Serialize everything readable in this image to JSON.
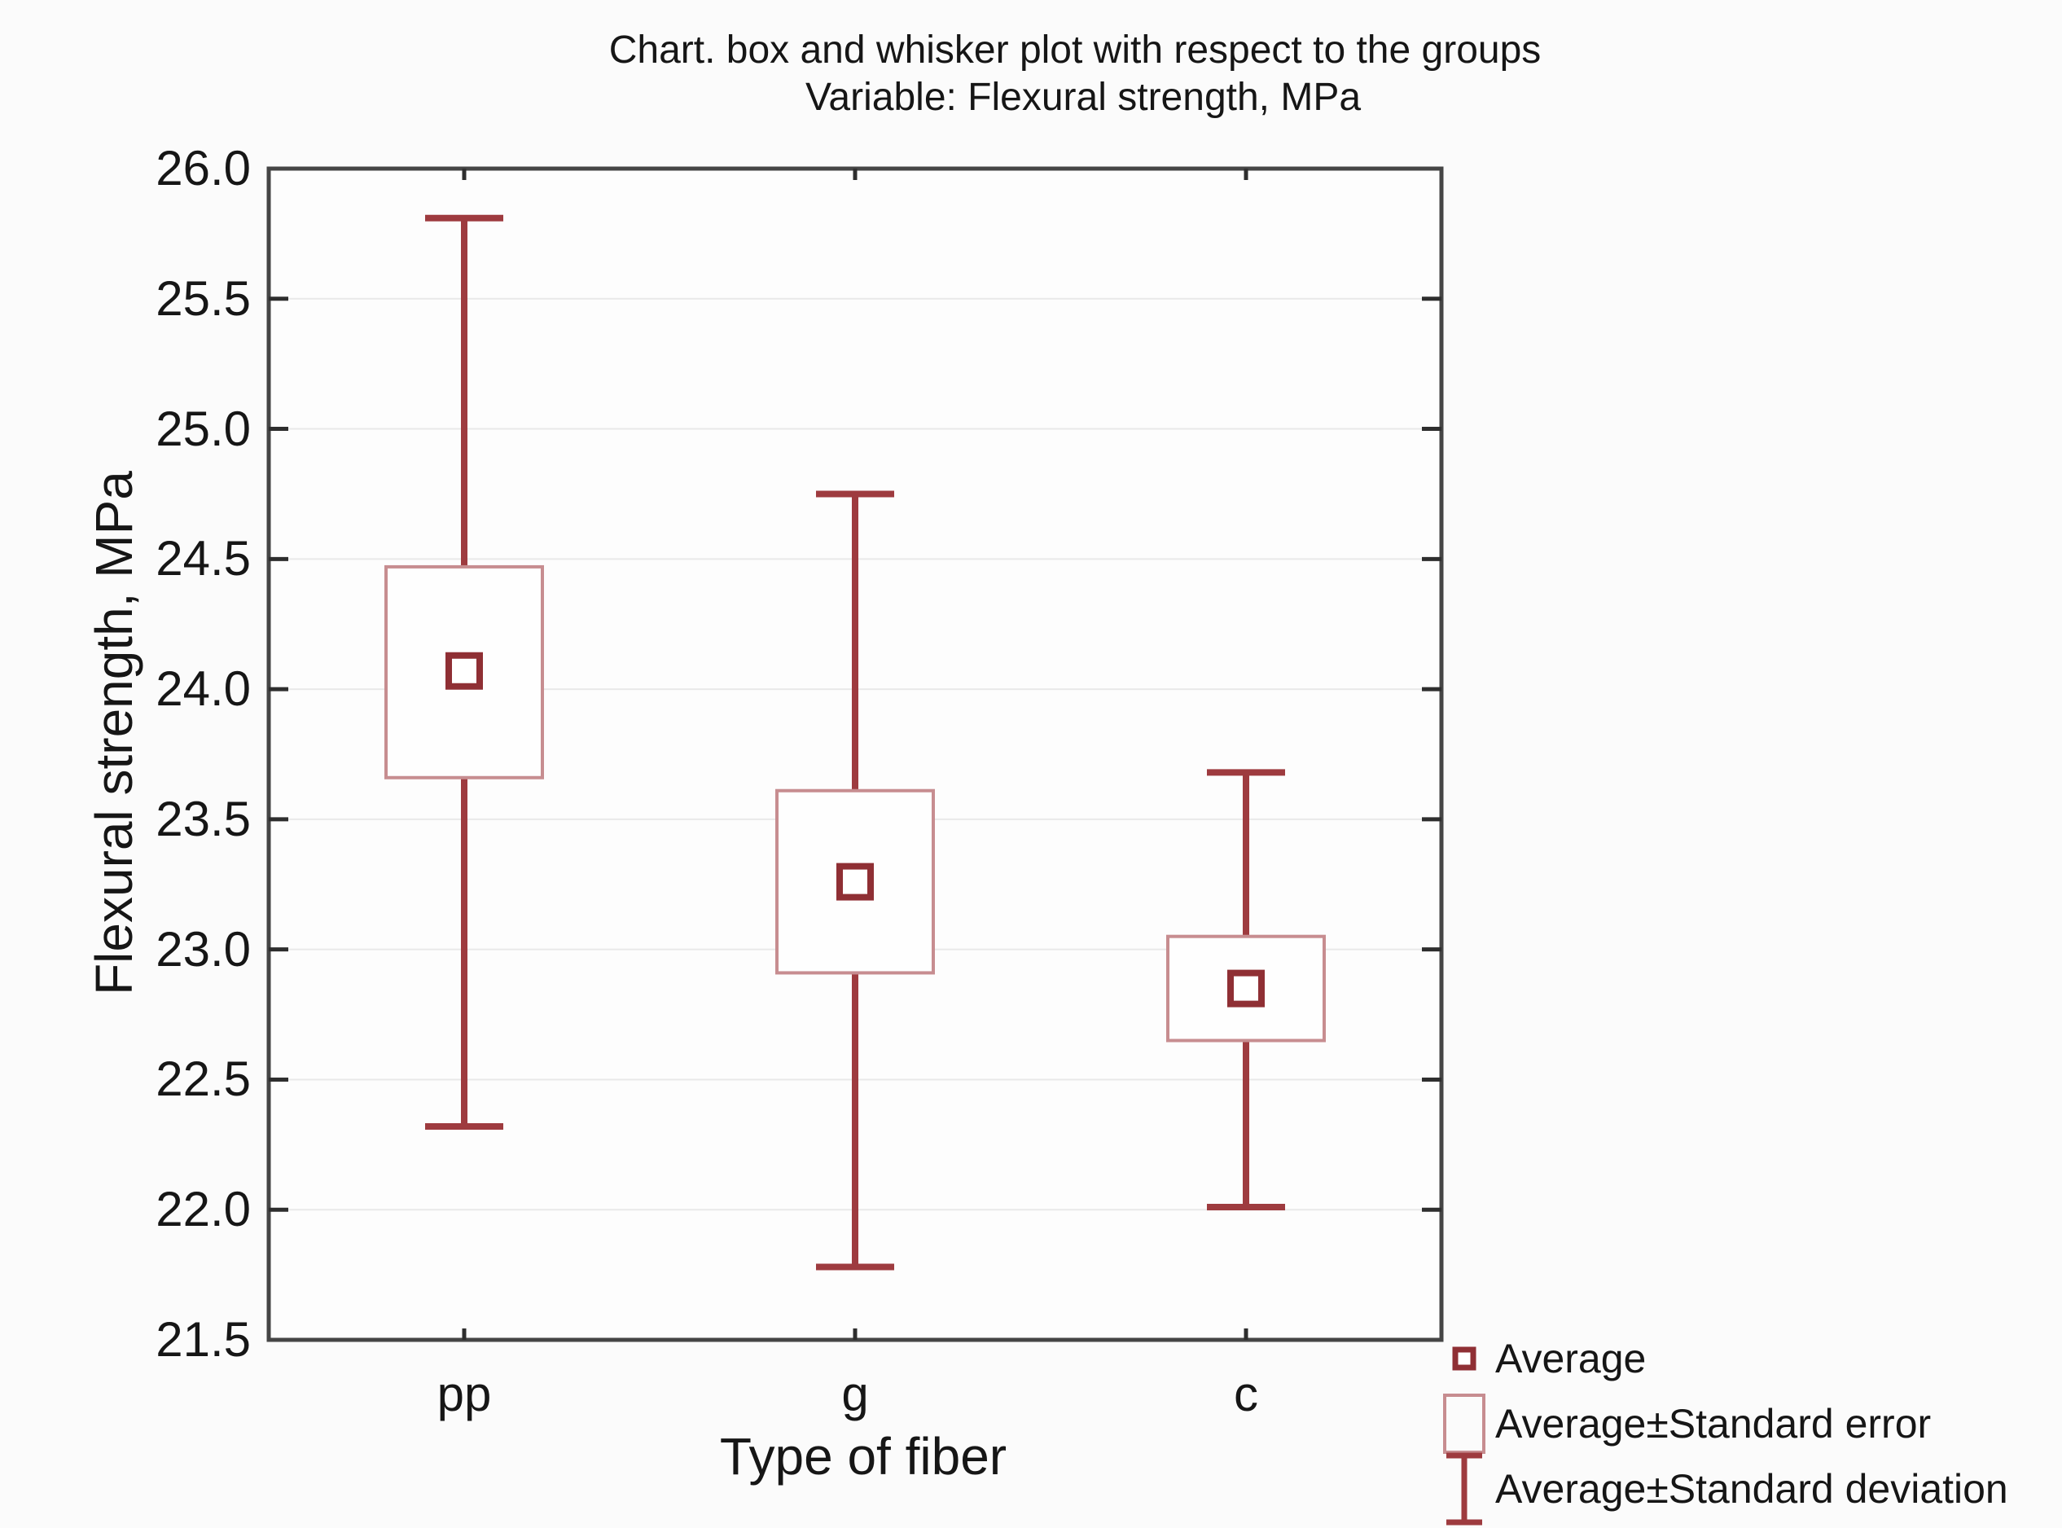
{
  "chart_data": {
    "type": "box",
    "title_line1": "Chart. box and whisker plot with respect to the groups",
    "title_line2": "Variable: Flexural strength, MPa",
    "xlabel": "Type of fiber",
    "ylabel": "Flexural strength, MPa",
    "ylim": [
      21.5,
      26.0
    ],
    "ytick_step": 0.5,
    "yticks": [
      "26.0",
      "25.5",
      "25.0",
      "24.5",
      "24.0",
      "23.5",
      "23.0",
      "22.5",
      "22.0",
      "21.5"
    ],
    "categories": [
      "pp",
      "g",
      "c"
    ],
    "grid": "horizontal",
    "legend_position": "bottom-right",
    "series": [
      {
        "group": "pp",
        "mean": 24.07,
        "se_low": 23.66,
        "se_high": 24.47,
        "sd_low": 22.32,
        "sd_high": 25.81
      },
      {
        "group": "g",
        "mean": 23.26,
        "se_low": 22.91,
        "se_high": 23.61,
        "sd_low": 21.78,
        "sd_high": 24.75
      },
      {
        "group": "c",
        "mean": 22.85,
        "se_low": 22.65,
        "se_high": 23.05,
        "sd_low": 22.01,
        "sd_high": 23.68
      }
    ],
    "legend": [
      {
        "marker": "average-square",
        "label": "Average"
      },
      {
        "marker": "standard-error-box",
        "label": "Average±Standard error"
      },
      {
        "marker": "standard-deviation-whisker",
        "label": "Average±Standard deviation"
      }
    ],
    "colors": {
      "dark_red": "#9e3b3f",
      "mean_red": "#8f2f34",
      "light_red": "#c78d90",
      "frame": "#454545",
      "tick": "#2e2e2e",
      "grid": "#e9e9e9",
      "text": "#161616",
      "plot_bg": "#fdfdfd",
      "page_bg": "#fbfbfb"
    }
  }
}
